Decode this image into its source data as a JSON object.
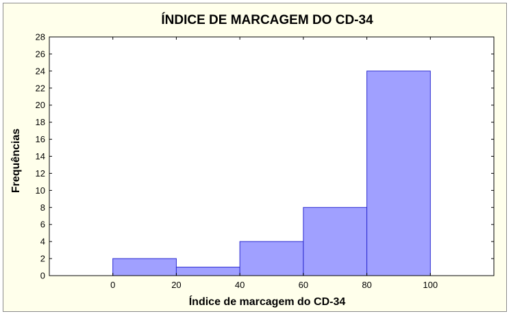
{
  "chart_data": {
    "type": "bar",
    "title": "ÍNDICE DE MARCAGEM DO CD-34",
    "xlabel": "Índice de marcagem do CD-34",
    "ylabel": "Frequências",
    "bins": [
      {
        "from": 0,
        "to": 20,
        "value": 2
      },
      {
        "from": 20,
        "to": 40,
        "value": 1
      },
      {
        "from": 40,
        "to": 60,
        "value": 4
      },
      {
        "from": 60,
        "to": 80,
        "value": 8
      },
      {
        "from": 80,
        "to": 100,
        "value": 24
      }
    ],
    "xlim": [
      -20,
      120
    ],
    "ylim": [
      0,
      28
    ],
    "xticks": [
      0,
      20,
      40,
      60,
      80,
      100
    ],
    "yticks": [
      0,
      2,
      4,
      6,
      8,
      10,
      12,
      14,
      16,
      18,
      20,
      22,
      24,
      26,
      28
    ],
    "grid": false,
    "bar_color": "#a0a0ff",
    "bar_edge_color": "#2b2bd0",
    "plot_bg": "#ffffff",
    "outer_bg": "#ffffeb"
  }
}
